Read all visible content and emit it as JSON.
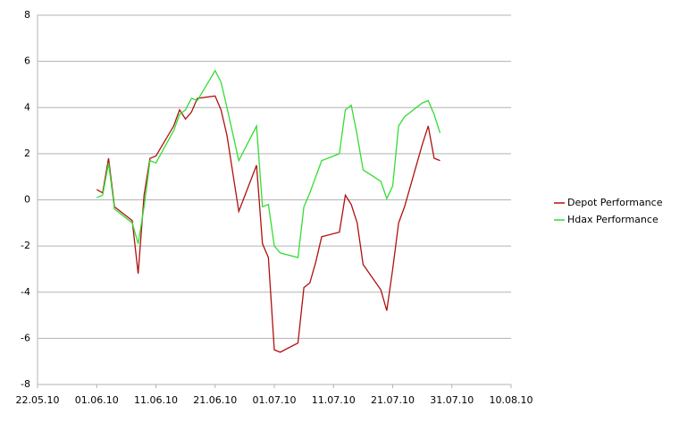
{
  "chart_data": {
    "type": "line",
    "x": [
      "2010-06-01",
      "2010-06-02",
      "2010-06-03",
      "2010-06-04",
      "2010-06-07",
      "2010-06-08",
      "2010-06-09",
      "2010-06-10",
      "2010-06-11",
      "2010-06-14",
      "2010-06-15",
      "2010-06-16",
      "2010-06-17",
      "2010-06-18",
      "2010-06-21",
      "2010-06-22",
      "2010-06-23",
      "2010-06-25",
      "2010-06-28",
      "2010-06-29",
      "2010-06-30",
      "2010-07-01",
      "2010-07-02",
      "2010-07-05",
      "2010-07-06",
      "2010-07-07",
      "2010-07-08",
      "2010-07-09",
      "2010-07-12",
      "2010-07-13",
      "2010-07-14",
      "2010-07-15",
      "2010-07-16",
      "2010-07-19",
      "2010-07-20",
      "2010-07-21",
      "2010-07-22",
      "2010-07-23",
      "2010-07-26",
      "2010-07-27",
      "2010-07-28",
      "2010-07-29"
    ],
    "series": [
      {
        "name": "Depot Performance",
        "color": "#b01010",
        "values": [
          0.45,
          0.3,
          1.8,
          -0.3,
          -0.9,
          -3.2,
          0.2,
          1.8,
          1.9,
          3.2,
          3.9,
          3.5,
          3.8,
          4.4,
          4.5,
          3.9,
          2.8,
          -0.5,
          1.5,
          -1.9,
          -2.5,
          -6.5,
          -6.6,
          -6.2,
          -3.8,
          -3.6,
          -2.7,
          -1.6,
          -1.4,
          0.2,
          -0.2,
          -1.0,
          -2.8,
          -3.9,
          -4.8,
          -3.0,
          -1.0,
          -0.3,
          2.4,
          3.2,
          1.8,
          1.7
        ]
      },
      {
        "name": "Hdax Performance",
        "color": "#33dd33",
        "values": [
          0.1,
          0.2,
          1.6,
          -0.4,
          -1.0,
          -1.9,
          -0.3,
          1.7,
          1.6,
          3.0,
          3.7,
          3.9,
          4.4,
          4.3,
          5.6,
          5.1,
          4.0,
          1.7,
          3.2,
          -0.3,
          -0.2,
          -2.0,
          -2.3,
          -2.5,
          -0.3,
          0.3,
          1.0,
          1.7,
          2.0,
          3.9,
          4.1,
          2.8,
          1.3,
          0.8,
          0.05,
          0.6,
          3.2,
          3.6,
          4.2,
          4.3,
          3.7,
          2.9
        ]
      }
    ],
    "xlim": [
      "2010-05-22",
      "2010-08-10"
    ],
    "xticks": [
      {
        "value": "2010-05-22",
        "label": "22.05.10"
      },
      {
        "value": "2010-06-01",
        "label": "01.06.10"
      },
      {
        "value": "2010-06-11",
        "label": "11.06.10"
      },
      {
        "value": "2010-06-21",
        "label": "21.06.10"
      },
      {
        "value": "2010-07-01",
        "label": "01.07.10"
      },
      {
        "value": "2010-07-11",
        "label": "11.07.10"
      },
      {
        "value": "2010-07-21",
        "label": "21.07.10"
      },
      {
        "value": "2010-07-31",
        "label": "31.07.10"
      },
      {
        "value": "2010-08-10",
        "label": "10.08.10"
      }
    ],
    "ylim": [
      -8,
      8
    ],
    "yticks": [
      -8,
      -6,
      -4,
      -2,
      0,
      2,
      4,
      6,
      8
    ],
    "grid": true,
    "legend": "right"
  }
}
